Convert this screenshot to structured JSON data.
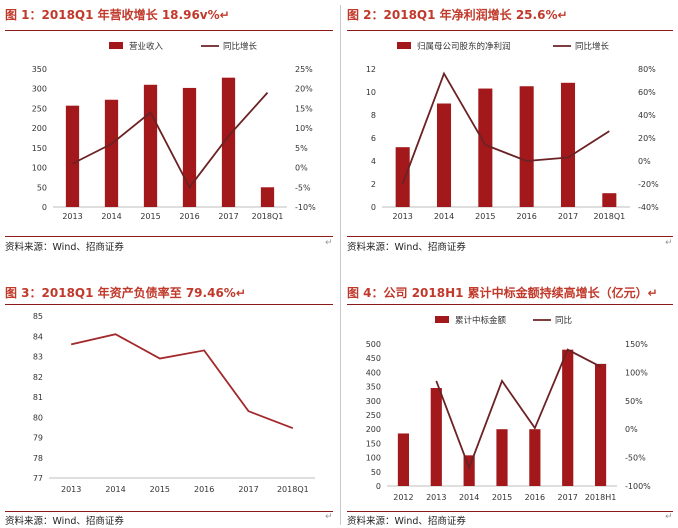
{
  "colors": {
    "bar": "#a3181b",
    "line": "#6b2224",
    "title": "#c0392b",
    "rule": "#8b1a1a"
  },
  "source_text": "资料来源：Wind、招商证券",
  "end_mark": "↵",
  "charts": [
    {
      "title": "图 1：2018Q1 年营收增长 18.96v%↵",
      "chart_data": {
        "type": "bar+line",
        "categories": [
          "2013",
          "2014",
          "2015",
          "2016",
          "2017",
          "2018Q1"
        ],
        "series": [
          {
            "name": "营业收入",
            "type": "bar",
            "axis": "left",
            "values": [
              257,
              272,
              310,
              302,
              328,
              50
            ]
          },
          {
            "name": "同比增长",
            "type": "line",
            "axis": "right",
            "values": [
              1,
              6,
              14,
              -5,
              8,
              19
            ]
          }
        ],
        "left_axis": {
          "min": 0,
          "max": 350,
          "step": 50,
          "ticks": [
            "0",
            "50",
            "100",
            "150",
            "200",
            "250",
            "300",
            "350"
          ]
        },
        "right_axis": {
          "min": -10,
          "max": 25,
          "step": 5,
          "ticks": [
            "-10%",
            "-5%",
            "0%",
            "5%",
            "10%",
            "15%",
            "20%",
            "25%"
          ]
        },
        "legend": "top",
        "grid": false
      }
    },
    {
      "title": "图 2：2018Q1 年净利润增长 25.6%↵",
      "chart_data": {
        "type": "bar+line",
        "categories": [
          "2013",
          "2014",
          "2015",
          "2016",
          "2017",
          "2018Q1"
        ],
        "series": [
          {
            "name": "归属母公司股东的净利润",
            "type": "bar",
            "axis": "left",
            "values": [
              5.2,
              9.0,
              10.3,
              10.5,
              10.8,
              1.2
            ]
          },
          {
            "name": "同比增长",
            "type": "line",
            "axis": "right",
            "values": [
              -20,
              76,
              14,
              0,
              3,
              26
            ]
          }
        ],
        "left_axis": {
          "min": 0,
          "max": 12,
          "step": 2,
          "ticks": [
            "0",
            "2",
            "4",
            "6",
            "8",
            "10",
            "12"
          ]
        },
        "right_axis": {
          "min": -40,
          "max": 80,
          "step": 20,
          "ticks": [
            "-40%",
            "-20%",
            "0%",
            "20%",
            "40%",
            "60%",
            "80%"
          ]
        },
        "legend": "top",
        "grid": false
      }
    },
    {
      "title": "图 3：2018Q1 年资产负债率至 79.46%↵",
      "chart_data": {
        "type": "line",
        "categories": [
          "2013",
          "2014",
          "2015",
          "2016",
          "2017",
          "2018Q1"
        ],
        "series": [
          {
            "type": "line",
            "values": [
              83.6,
              84.1,
              82.9,
              83.3,
              80.3,
              79.46
            ]
          }
        ],
        "y_axis": {
          "min": 77,
          "max": 85,
          "step": 1,
          "ticks": [
            "77",
            "78",
            "79",
            "80",
            "81",
            "82",
            "83",
            "84",
            "85"
          ]
        },
        "grid": false
      }
    },
    {
      "title": "图 4：公司 2018H1 累计中标金额持续高增长（亿元）↵",
      "chart_data": {
        "type": "bar+line",
        "categories": [
          "2012",
          "2013",
          "2014",
          "2015",
          "2016",
          "2017",
          "2018H1"
        ],
        "series": [
          {
            "name": "累计中标金额",
            "type": "bar",
            "axis": "left",
            "values": [
              185,
              345,
              108,
              200,
              200,
              480,
              430
            ]
          },
          {
            "name": "同比",
            "type": "line",
            "axis": "right",
            "values": [
              null,
              85,
              -68,
              85,
              2,
              140,
              110
            ]
          }
        ],
        "left_axis": {
          "min": 0,
          "max": 500,
          "step": 50,
          "ticks": [
            "0",
            "50",
            "100",
            "150",
            "200",
            "250",
            "300",
            "350",
            "400",
            "450",
            "500"
          ]
        },
        "right_axis": {
          "min": -100,
          "max": 150,
          "step": 50,
          "ticks": [
            "-100%",
            "-50%",
            "0%",
            "50%",
            "100%",
            "150%"
          ]
        },
        "legend": "top",
        "grid": false
      }
    }
  ]
}
